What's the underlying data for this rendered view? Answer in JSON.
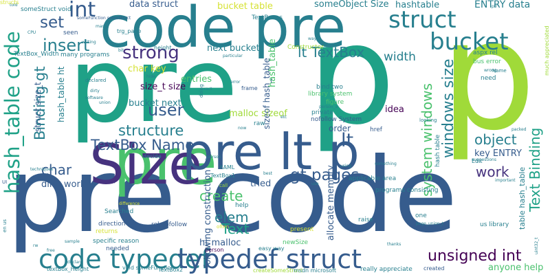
{
  "word_cloud": {
    "colors": {
      "green_light": "#a0da39",
      "green": "#4ac16d",
      "teal_green": "#1fa187",
      "teal": "#277f8e",
      "blue": "#365c8d",
      "indigo": "#46327e",
      "purple": "#440154",
      "pale_green": "#d6e236"
    },
    "words": [
      {
        "text": "pre code",
        "color": "#365c8d"
      },
      {
        "text": "pre",
        "color": "#1fa187"
      },
      {
        "text": "p",
        "color": "#a0da39"
      },
      {
        "text": "p",
        "color": "#1fa187"
      },
      {
        "text": "code pre",
        "color": "#277f8e"
      },
      {
        "text": "pre",
        "color": "#4ac16d"
      },
      {
        "text": "Size",
        "color": "#46327e"
      },
      {
        "text": "pre lt p",
        "color": "#365c8d"
      },
      {
        "text": "code typedef",
        "color": "#277f8e"
      },
      {
        "text": "typedef struct",
        "color": "#365c8d"
      },
      {
        "text": "hash_table code",
        "color": "#1fa187"
      },
      {
        "text": "struct",
        "color": "#277f8e"
      },
      {
        "text": "bucket",
        "color": "#277f8e"
      },
      {
        "text": "int",
        "color": "#365c8d"
      },
      {
        "text": "set",
        "color": "#365c8d"
      },
      {
        "text": "insert",
        "color": "#277f8e"
      },
      {
        "text": "strong",
        "color": "#46327e"
      },
      {
        "text": "user",
        "color": "#365c8d"
      },
      {
        "text": "structure",
        "color": "#277f8e"
      },
      {
        "text": "TextBox Name",
        "color": "#365c8d"
      },
      {
        "text": "lt TextBox",
        "color": "#277f8e"
      },
      {
        "text": "windows size",
        "color": "#277f8e"
      },
      {
        "text": "Text Binding",
        "color": "#1fa187"
      },
      {
        "text": "system windows",
        "color": "#4ac16d"
      },
      {
        "text": "Binding gt",
        "color": "#277f8e"
      },
      {
        "text": "object",
        "color": "#277f8e"
      },
      {
        "text": "work",
        "color": "#46327e"
      },
      {
        "text": "gt pages",
        "color": "#365c8d"
      },
      {
        "text": "create",
        "color": "#4ac16d"
      },
      {
        "text": "elem",
        "color": "#277f8e"
      },
      {
        "text": "Text",
        "color": "#1fa187"
      },
      {
        "text": "unsigned int",
        "color": "#440154"
      },
      {
        "text": "lt",
        "color": "#365c8d"
      },
      {
        "text": "char",
        "color": "#365c8d"
      },
      {
        "text": "width",
        "color": "#277f8e"
      },
      {
        "text": "someObject Size",
        "color": "#277f8e"
      },
      {
        "text": "bucket table",
        "color": "#d6e236"
      },
      {
        "text": "data struct",
        "color": "#365c8d"
      },
      {
        "text": "hashtable",
        "color": "#277f8e"
      },
      {
        "text": "ENTRY data",
        "color": "#277f8e"
      },
      {
        "text": "next bucket",
        "color": "#277f8e"
      },
      {
        "text": "hash_table",
        "color": "#4ac16d"
      },
      {
        "text": "size_t size",
        "color": "#440154"
      },
      {
        "text": "bucket next",
        "color": "#277f8e"
      },
      {
        "text": "char key",
        "color": "#d6e236"
      },
      {
        "text": "entries",
        "color": "#4ac16d"
      },
      {
        "text": "malloc sizeof",
        "color": "#a0da39"
      },
      {
        "text": "allocate memory",
        "color": "#365c8d"
      },
      {
        "text": "following construction",
        "color": "#365c8d"
      },
      {
        "text": "ht malloc",
        "color": "#365c8d"
      },
      {
        "text": "tried",
        "color": "#365c8d"
      },
      {
        "text": "din't work",
        "color": "#365c8d"
      },
      {
        "text": "idea",
        "color": "#440154"
      },
      {
        "text": "order",
        "color": "#365c8d"
      },
      {
        "text": "key ENTRY",
        "color": "#365c8d"
      },
      {
        "text": "table hash_table",
        "color": "#277f8e"
      },
      {
        "text": "anyone help",
        "color": "#4ac16d"
      },
      {
        "text": "struct size_t",
        "color": "#365c8d"
      },
      {
        "text": "hash_table ht",
        "color": "#277f8e"
      },
      {
        "text": "sizeof hash_table",
        "color": "#365c8d"
      },
      {
        "text": "TextBoxes",
        "color": "#277f8e"
      },
      {
        "text": "someStruct void",
        "color": "#277f8e"
      },
      {
        "text": "seen",
        "color": "#365c8d"
      },
      {
        "text": "many programs",
        "color": "#277f8e"
      },
      {
        "text": "height",
        "color": "#277f8e"
      },
      {
        "text": "trg_page",
        "color": "#277f8e"
      },
      {
        "text": "TextBox_Width",
        "color": "#277f8e"
      },
      {
        "text": "TextBox1",
        "color": "#277f8e"
      },
      {
        "text": "bind two",
        "color": "#277f8e"
      },
      {
        "text": "library system",
        "color": "#4ac16d"
      },
      {
        "text": "figure",
        "color": "#4ac16d"
      },
      {
        "text": "private",
        "color": "#277f8e"
      },
      {
        "text": "nofollow System",
        "color": "#365c8d"
      },
      {
        "text": "raw",
        "color": "#277f8e"
      },
      {
        "text": "href",
        "color": "#365c8d"
      },
      {
        "text": "Constructor",
        "color": "#a0da39"
      },
      {
        "text": "aspx rel",
        "color": "#277f8e"
      },
      {
        "text": "bus error",
        "color": "#4ac16d"
      },
      {
        "text": "need",
        "color": "#277f8e"
      },
      {
        "text": "Name",
        "color": "#277f8e"
      },
      {
        "text": "much appreciated",
        "color": "#a0da39"
      },
      {
        "text": "applicable area",
        "color": "#277f8e"
      },
      {
        "text": "hash table",
        "color": "#277f8e"
      },
      {
        "text": "programs consisting",
        "color": "#277f8e"
      },
      {
        "text": "Edit",
        "color": "#277f8e"
      },
      {
        "text": "frame",
        "color": "#365c8d"
      },
      {
        "text": "rel nofollow",
        "color": "#365c8d"
      },
      {
        "text": "us library",
        "color": "#277f8e"
      },
      {
        "text": "help",
        "color": "#277f8e"
      },
      {
        "text": "raise",
        "color": "#277f8e"
      },
      {
        "text": "age",
        "color": "#365c8d"
      },
      {
        "text": "one",
        "color": "#277f8e"
      },
      {
        "text": "Searched",
        "color": "#277f8e"
      },
      {
        "text": "direction",
        "color": "#365c8d"
      },
      {
        "text": "returns",
        "color": "#d6e236"
      },
      {
        "text": "specific reason",
        "color": "#277f8e"
      },
      {
        "text": "needed",
        "color": "#365c8d"
      },
      {
        "text": "void someFunction",
        "color": "#277f8e"
      },
      {
        "text": "textBox_Height",
        "color": "#277f8e"
      },
      {
        "text": "TextBox2",
        "color": "#277f8e"
      },
      {
        "text": "createSomeStruct",
        "color": "#a0da39"
      },
      {
        "text": "msdn microsoft",
        "color": "#277f8e"
      },
      {
        "text": "really appreciate",
        "color": "#277f8e"
      },
      {
        "text": "created",
        "color": "#365c8d"
      },
      {
        "text": "easy way",
        "color": "#277f8e"
      },
      {
        "text": "newSize",
        "color": "#4ac16d"
      },
      {
        "text": "present",
        "color": "#d6e236"
      },
      {
        "text": "often",
        "color": "#d6e236"
      },
      {
        "text": "XAML",
        "color": "#277f8e"
      },
      {
        "text": "call",
        "color": "#a0da39"
      },
      {
        "text": "decide",
        "color": "#277f8e"
      },
      {
        "text": "person",
        "color": "#440154"
      },
      {
        "text": "UI",
        "color": "#365c8d"
      },
      {
        "text": "en us",
        "color": "#277f8e"
      },
      {
        "text": "someFunction someStruct",
        "color": "#365c8d"
      },
      {
        "text": "declared",
        "color": "#277f8e"
      },
      {
        "text": "union",
        "color": "#277f8e"
      },
      {
        "text": "dirty",
        "color": "#277f8e"
      },
      {
        "text": "looking",
        "color": "#277f8e"
      },
      {
        "text": "packed",
        "color": "#277f8e"
      },
      {
        "text": "uint32_t",
        "color": "#277f8e"
      },
      {
        "text": "page_union_t",
        "color": "#277f8e"
      },
      {
        "text": "suggestions",
        "color": "#277f8e"
      },
      {
        "text": "using",
        "color": "#277f8e"
      },
      {
        "text": "best",
        "color": "#277f8e"
      },
      {
        "text": "something",
        "color": "#277f8e"
      },
      {
        "text": "software",
        "color": "#277f8e"
      },
      {
        "text": "difference",
        "color": "#d6e236"
      },
      {
        "text": "thanks",
        "color": "#277f8e"
      },
      {
        "text": "error",
        "color": "#277f8e"
      },
      {
        "text": "person_a",
        "color": "#277f8e"
      },
      {
        "text": "_person",
        "color": "#277f8e"
      },
      {
        "text": "exact",
        "color": "#277f8e"
      },
      {
        "text": "wrong",
        "color": "#277f8e"
      },
      {
        "text": "hide",
        "color": "#277f8e"
      },
      {
        "text": "particular",
        "color": "#277f8e"
      },
      {
        "text": "writing",
        "color": "#277f8e"
      },
      {
        "text": "CPU",
        "color": "#277f8e"
      },
      {
        "text": "many",
        "color": "#277f8e"
      },
      {
        "text": "way",
        "color": "#277f8e"
      },
      {
        "text": "told",
        "color": "#277f8e"
      },
      {
        "text": "sample",
        "color": "#277f8e"
      },
      {
        "text": "use",
        "color": "#277f8e"
      },
      {
        "text": "bit",
        "color": "#277f8e"
      },
      {
        "text": "now",
        "color": "#277f8e"
      },
      {
        "text": "declare",
        "color": "#277f8e"
      },
      {
        "text": "techniques",
        "color": "#277f8e"
      },
      {
        "text": "etc",
        "color": "#277f8e"
      },
      {
        "text": "free",
        "color": "#277f8e"
      },
      {
        "text": "ptr",
        "color": "#277f8e"
      },
      {
        "text": "important",
        "color": "#277f8e"
      },
      {
        "text": "doing",
        "color": "#277f8e"
      },
      {
        "text": "rw",
        "color": "#277f8e"
      },
      {
        "text": "structs",
        "color": "#d6e236"
      }
    ]
  }
}
